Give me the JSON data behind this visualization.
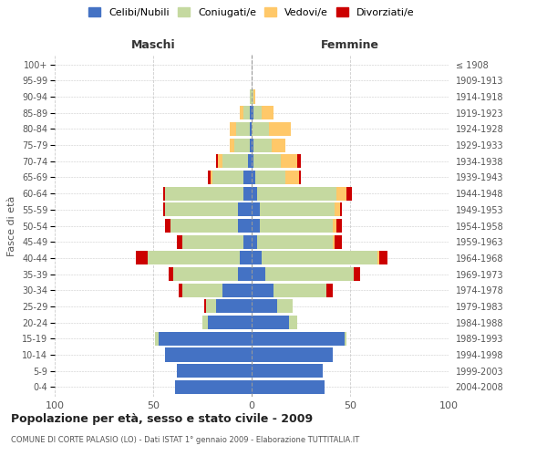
{
  "age_groups": [
    "0-4",
    "5-9",
    "10-14",
    "15-19",
    "20-24",
    "25-29",
    "30-34",
    "35-39",
    "40-44",
    "45-49",
    "50-54",
    "55-59",
    "60-64",
    "65-69",
    "70-74",
    "75-79",
    "80-84",
    "85-89",
    "90-94",
    "95-99",
    "100+"
  ],
  "birth_years": [
    "2004-2008",
    "1999-2003",
    "1994-1998",
    "1989-1993",
    "1984-1988",
    "1979-1983",
    "1974-1978",
    "1969-1973",
    "1964-1968",
    "1959-1963",
    "1954-1958",
    "1949-1953",
    "1944-1948",
    "1939-1943",
    "1934-1938",
    "1929-1933",
    "1924-1928",
    "1919-1923",
    "1914-1918",
    "1909-1913",
    "≤ 1908"
  ],
  "colors": {
    "celibe": "#4472c4",
    "coniugato": "#c5d9a0",
    "vedovo": "#ffc869",
    "divorziato": "#cc0000"
  },
  "maschi": {
    "celibe": [
      39,
      38,
      44,
      47,
      22,
      18,
      15,
      7,
      6,
      4,
      7,
      7,
      4,
      4,
      2,
      1,
      1,
      1,
      0,
      0,
      0
    ],
    "coniugato": [
      0,
      0,
      0,
      2,
      3,
      5,
      20,
      33,
      47,
      31,
      34,
      37,
      40,
      16,
      13,
      8,
      7,
      3,
      1,
      0,
      0
    ],
    "vedovo": [
      0,
      0,
      0,
      0,
      0,
      0,
      0,
      0,
      0,
      0,
      0,
      0,
      0,
      1,
      2,
      2,
      3,
      2,
      0,
      0,
      0
    ],
    "divorziato": [
      0,
      0,
      0,
      0,
      0,
      1,
      2,
      2,
      6,
      3,
      3,
      1,
      1,
      1,
      1,
      0,
      0,
      0,
      0,
      0,
      0
    ]
  },
  "femmine": {
    "nubile": [
      37,
      36,
      41,
      47,
      19,
      13,
      11,
      7,
      5,
      3,
      4,
      4,
      3,
      2,
      1,
      1,
      0,
      1,
      0,
      0,
      0
    ],
    "coniugata": [
      0,
      0,
      0,
      1,
      4,
      8,
      27,
      45,
      59,
      38,
      37,
      38,
      40,
      15,
      14,
      9,
      9,
      4,
      1,
      0,
      0
    ],
    "vedova": [
      0,
      0,
      0,
      0,
      0,
      0,
      0,
      0,
      1,
      1,
      2,
      3,
      5,
      7,
      8,
      7,
      11,
      6,
      1,
      0,
      0
    ],
    "divorziata": [
      0,
      0,
      0,
      0,
      0,
      0,
      3,
      3,
      4,
      4,
      3,
      1,
      3,
      1,
      2,
      0,
      0,
      0,
      0,
      0,
      0
    ]
  },
  "title": "Popolazione per età, sesso e stato civile - 2009",
  "subtitle": "COMUNE DI CORTE PALASIO (LO) - Dati ISTAT 1° gennaio 2009 - Elaborazione TUTTITALIA.IT",
  "xlabel_left": "Maschi",
  "xlabel_right": "Femmine",
  "ylabel_left": "Fasce di età",
  "legend_labels": [
    "Celibi/Nubili",
    "Coniugati/e",
    "Vedovi/e",
    "Divorziati/e"
  ],
  "xlim": 100,
  "background_color": "#ffffff",
  "grid_color": "#cccccc"
}
